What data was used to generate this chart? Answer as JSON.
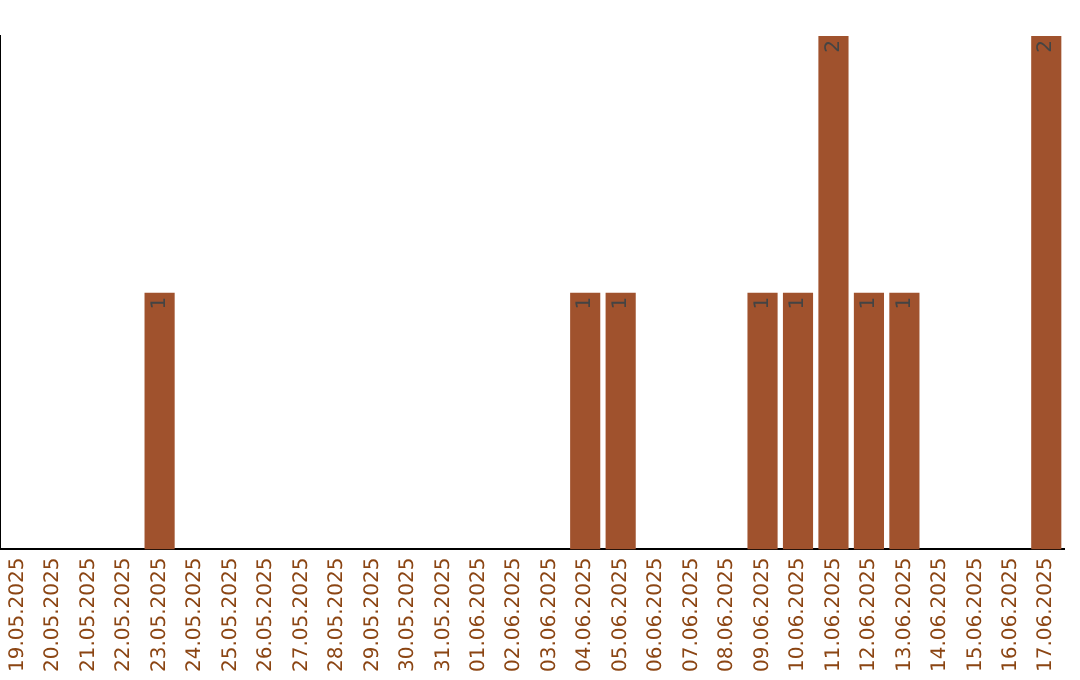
{
  "chart_data": {
    "type": "bar",
    "categories": [
      "19.05.2025",
      "20.05.2025",
      "21.05.2025",
      "22.05.2025",
      "23.05.2025",
      "24.05.2025",
      "25.05.2025",
      "26.05.2025",
      "27.05.2025",
      "28.05.2025",
      "29.05.2025",
      "30.05.2025",
      "31.05.2025",
      "01.06.2025",
      "02.06.2025",
      "03.06.2025",
      "04.06.2025",
      "05.06.2025",
      "06.06.2025",
      "07.06.2025",
      "08.06.2025",
      "09.06.2025",
      "10.06.2025",
      "11.06.2025",
      "12.06.2025",
      "13.06.2025",
      "14.06.2025",
      "15.06.2025",
      "16.06.2025",
      "17.06.2025"
    ],
    "values": [
      0,
      0,
      0,
      0,
      1,
      0,
      0,
      0,
      0,
      0,
      0,
      0,
      0,
      0,
      0,
      0,
      1,
      1,
      0,
      0,
      0,
      1,
      1,
      2,
      1,
      1,
      0,
      0,
      0,
      2
    ],
    "value_labels": [
      null,
      null,
      null,
      null,
      "1",
      null,
      null,
      null,
      null,
      null,
      null,
      null,
      null,
      null,
      null,
      null,
      "1",
      "1",
      null,
      null,
      null,
      "1",
      "1",
      "2",
      "1",
      "1",
      null,
      null,
      null,
      "2"
    ],
    "color": "#a0522d",
    "grid": false,
    "legend": false,
    "tick_labels": "x"
  }
}
